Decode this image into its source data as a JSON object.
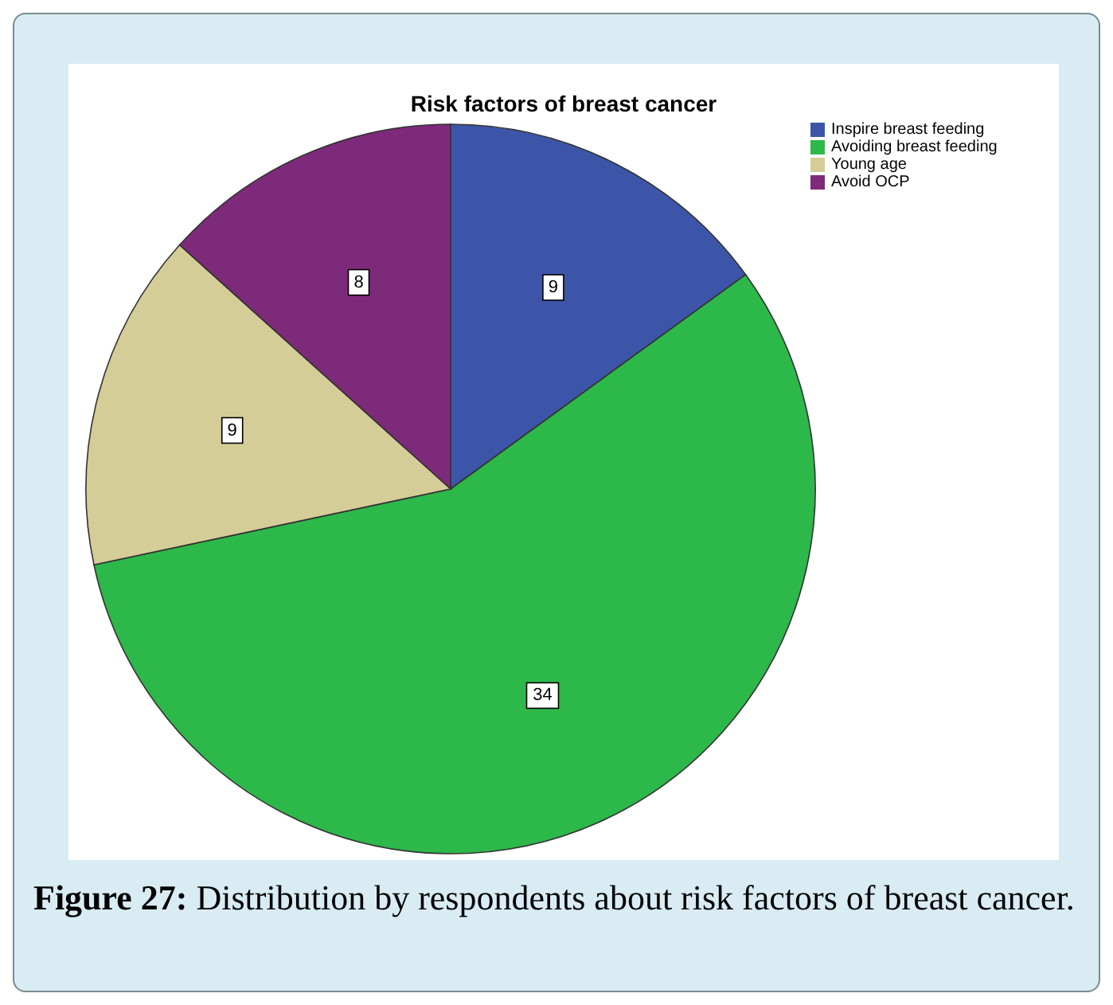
{
  "chart_data": {
    "type": "pie",
    "title": "Risk factors of breast cancer",
    "categories": [
      "Inspire breast feeding",
      "Avoiding breast feeding",
      "Young age",
      "Avoid OCP"
    ],
    "values": [
      9,
      34,
      9,
      8
    ],
    "colors": [
      "#3d55a8",
      "#2db84a",
      "#d4cd98",
      "#7e2a7a"
    ],
    "data_labels": true,
    "legend": "top right",
    "annotations": [
      "Figure 27: Distribution by respondents about risk factors of breast cancer."
    ]
  }
}
